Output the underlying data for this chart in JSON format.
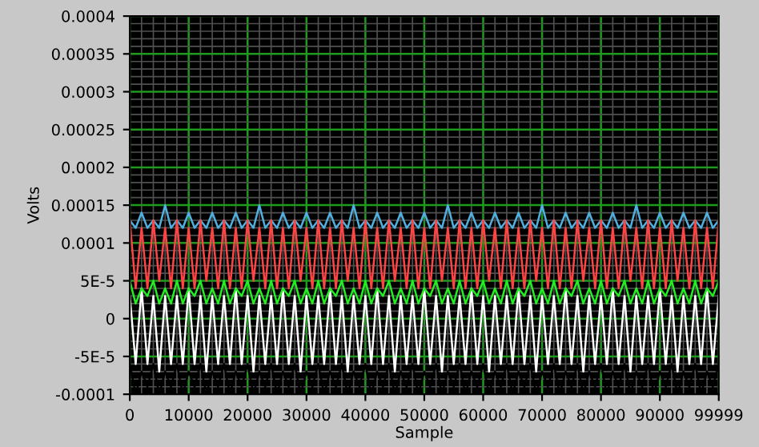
{
  "chart_data": {
    "type": "line",
    "xlabel": "Sample",
    "ylabel": "Volts",
    "xlim": [
      0,
      99999
    ],
    "ylim": [
      -0.0001,
      0.0004
    ],
    "xticks": [
      0,
      10000,
      20000,
      30000,
      40000,
      50000,
      60000,
      70000,
      80000,
      90000,
      99999
    ],
    "yticks": [
      {
        "value": -0.0001,
        "label": "-0.0001"
      },
      {
        "value": -5e-05,
        "label": "-5E-5"
      },
      0,
      {
        "value": 5e-05,
        "label": "5E-5"
      },
      {
        "value": 0.0001,
        "label": "0.0001"
      },
      {
        "value": 0.00015,
        "label": "0.00015"
      },
      {
        "value": 0.0002,
        "label": "0.0002"
      },
      {
        "value": 0.00025,
        "label": "0.00025"
      },
      {
        "value": 0.0003,
        "label": "0.0003"
      },
      {
        "value": 0.00035,
        "label": "0.00035"
      },
      {
        "value": 0.0004,
        "label": "0.0004"
      }
    ],
    "grid": true,
    "marker": "none",
    "line_style": "solid",
    "x": [
      0,
      1000,
      2000,
      3000,
      4000,
      5000,
      6000,
      7000,
      8000,
      9000,
      10000,
      11000,
      12000,
      13000,
      14000,
      15000,
      16000,
      17000,
      18000,
      19000,
      20000,
      21000,
      22000,
      23000,
      24000,
      25000,
      26000,
      27000,
      28000,
      29000,
      30000,
      31000,
      32000,
      33000,
      34000,
      35000,
      36000,
      37000,
      38000,
      39000,
      40000,
      41000,
      42000,
      43000,
      44000,
      45000,
      46000,
      47000,
      48000,
      49000,
      50000,
      51000,
      52000,
      53000,
      54000,
      55000,
      56000,
      57000,
      58000,
      59000,
      60000,
      61000,
      62000,
      63000,
      64000,
      65000,
      66000,
      67000,
      68000,
      69000,
      70000,
      71000,
      72000,
      73000,
      74000,
      75000,
      76000,
      77000,
      78000,
      79000,
      80000,
      81000,
      82000,
      83000,
      84000,
      85000,
      86000,
      87000,
      88000,
      89000,
      90000,
      91000,
      92000,
      93000,
      94000,
      95000,
      96000,
      97000,
      98000,
      99000,
      99999
    ],
    "series": [
      {
        "color": "#ffffff",
        "values": [
          3e-05,
          -6e-05,
          4e-05,
          -6e-05,
          3e-05,
          -7e-05,
          3e-05,
          -6e-05,
          3e-05,
          -6e-05,
          4e-05,
          -6e-05,
          3e-05,
          -7e-05,
          3e-05,
          -6e-05,
          3e-05,
          -6e-05,
          4e-05,
          -6e-05,
          3e-05,
          -7e-05,
          3e-05,
          -6e-05,
          3e-05,
          -6e-05,
          4e-05,
          -6e-05,
          3e-05,
          -7e-05,
          3e-05,
          -6e-05,
          3e-05,
          -6e-05,
          4e-05,
          -6e-05,
          3e-05,
          -7e-05,
          3e-05,
          -6e-05,
          3e-05,
          -6e-05,
          4e-05,
          -6e-05,
          3e-05,
          -7e-05,
          3e-05,
          -6e-05,
          3e-05,
          -6e-05,
          4e-05,
          -6e-05,
          3e-05,
          -7e-05,
          3e-05,
          -6e-05,
          3e-05,
          -6e-05,
          4e-05,
          -6e-05,
          3e-05,
          -7e-05,
          3e-05,
          -6e-05,
          3e-05,
          -6e-05,
          4e-05,
          -6e-05,
          3e-05,
          -7e-05,
          3e-05,
          -6e-05,
          3e-05,
          -6e-05,
          4e-05,
          -6e-05,
          3e-05,
          -7e-05,
          3e-05,
          -6e-05,
          3e-05,
          -6e-05,
          4e-05,
          -6e-05,
          3e-05,
          -7e-05,
          3e-05,
          -6e-05,
          3e-05,
          -6e-05,
          4e-05,
          -6e-05,
          3e-05,
          -7e-05,
          3e-05,
          -6e-05,
          3e-05,
          -6e-05,
          4e-05,
          -6e-05,
          3e-05
        ]
      },
      {
        "color": "#000000",
        "values": [
          -6e-05,
          -0.0001,
          -7e-05,
          -9e-05,
          -6e-05,
          -0.0001,
          -7e-05,
          -9e-05,
          -6e-05,
          -0.0001,
          -7e-05,
          -9e-05,
          -6e-05,
          -0.0001,
          -7e-05,
          -9e-05,
          -6e-05,
          -0.0001,
          -7e-05,
          -9e-05,
          -6e-05,
          -0.0001,
          -7e-05,
          -9e-05,
          -6e-05,
          -0.0001,
          -7e-05,
          -9e-05,
          -6e-05,
          -0.0001,
          -7e-05,
          -9e-05,
          -6e-05,
          -0.0001,
          -7e-05,
          -9e-05,
          -6e-05,
          -0.0001,
          -7e-05,
          -9e-05,
          -6e-05,
          -0.0001,
          -7e-05,
          -9e-05,
          -6e-05,
          -0.0001,
          -7e-05,
          -9e-05,
          -6e-05,
          -0.0001,
          -7e-05,
          -9e-05,
          -6e-05,
          -0.0001,
          -7e-05,
          -9e-05,
          -6e-05,
          -0.0001,
          -7e-05,
          -9e-05,
          -6e-05,
          -0.0001,
          -7e-05,
          -9e-05,
          -6e-05,
          -0.0001,
          -7e-05,
          -9e-05,
          -6e-05,
          -0.0001,
          -7e-05,
          -9e-05,
          -6e-05,
          -0.0001,
          -7e-05,
          -9e-05,
          -6e-05,
          -0.0001,
          -7e-05,
          -9e-05,
          -6e-05,
          -0.0001,
          -7e-05,
          -9e-05,
          -6e-05,
          -0.0001,
          -7e-05,
          -9e-05,
          -6e-05,
          -0.0001,
          -7e-05,
          -9e-05,
          -6e-05,
          -0.0001,
          -7e-05,
          -9e-05,
          -6e-05,
          -0.0001,
          -7e-05,
          -9e-05,
          -6e-05
        ]
      },
      {
        "color": "#22ee22",
        "values": [
          5e-05,
          2e-05,
          4e-05,
          3e-05,
          5e-05,
          2e-05,
          4e-05,
          2e-05,
          5e-05,
          2e-05,
          4e-05,
          3e-05,
          5e-05,
          2e-05,
          4e-05,
          2e-05,
          5e-05,
          2e-05,
          4e-05,
          3e-05,
          5e-05,
          2e-05,
          4e-05,
          2e-05,
          5e-05,
          2e-05,
          4e-05,
          3e-05,
          5e-05,
          2e-05,
          4e-05,
          2e-05,
          5e-05,
          2e-05,
          4e-05,
          3e-05,
          5e-05,
          2e-05,
          4e-05,
          2e-05,
          5e-05,
          2e-05,
          4e-05,
          3e-05,
          5e-05,
          2e-05,
          4e-05,
          2e-05,
          5e-05,
          2e-05,
          4e-05,
          3e-05,
          5e-05,
          2e-05,
          4e-05,
          2e-05,
          5e-05,
          2e-05,
          4e-05,
          3e-05,
          5e-05,
          2e-05,
          4e-05,
          2e-05,
          5e-05,
          2e-05,
          4e-05,
          3e-05,
          5e-05,
          2e-05,
          4e-05,
          2e-05,
          5e-05,
          2e-05,
          4e-05,
          3e-05,
          5e-05,
          2e-05,
          4e-05,
          2e-05,
          5e-05,
          2e-05,
          4e-05,
          3e-05,
          5e-05,
          2e-05,
          4e-05,
          2e-05,
          5e-05,
          2e-05,
          4e-05,
          3e-05,
          5e-05,
          2e-05,
          4e-05,
          2e-05,
          5e-05,
          2e-05,
          4e-05,
          3e-05,
          5e-05
        ]
      },
      {
        "color": "#4fb0e0",
        "values": [
          0.00013,
          0.00012,
          0.00014,
          0.00012,
          0.00013,
          0.00012,
          0.00015,
          0.00012,
          0.00013,
          0.00012,
          0.00014,
          0.00012,
          0.00013,
          0.00012,
          0.00014,
          0.00012,
          0.00013,
          0.00012,
          0.00014,
          0.00012,
          0.00013,
          0.00012,
          0.00015,
          0.00012,
          0.00013,
          0.00012,
          0.00014,
          0.00012,
          0.00013,
          0.00012,
          0.00014,
          0.00012,
          0.00013,
          0.00012,
          0.00014,
          0.00012,
          0.00013,
          0.00012,
          0.00015,
          0.00012,
          0.00013,
          0.00012,
          0.00014,
          0.00012,
          0.00013,
          0.00012,
          0.00014,
          0.00012,
          0.00013,
          0.00012,
          0.00014,
          0.00012,
          0.00013,
          0.00012,
          0.00015,
          0.00012,
          0.00013,
          0.00012,
          0.00014,
          0.00012,
          0.00013,
          0.00012,
          0.00014,
          0.00012,
          0.00013,
          0.00012,
          0.00014,
          0.00012,
          0.00013,
          0.00012,
          0.00015,
          0.00012,
          0.00013,
          0.00012,
          0.00014,
          0.00012,
          0.00013,
          0.00012,
          0.00014,
          0.00012,
          0.00013,
          0.00012,
          0.00014,
          0.00012,
          0.00013,
          0.00012,
          0.00015,
          0.00012,
          0.00013,
          0.00012,
          0.00014,
          0.00012,
          0.00013,
          0.00012,
          0.00014,
          0.00012,
          0.00013,
          0.00012,
          0.00014,
          0.00012,
          0.00013
        ]
      },
      {
        "color": "#ff4444",
        "values": [
          0.00013,
          4e-05,
          0.00012,
          4e-05,
          0.00013,
          5e-05,
          0.00012,
          4e-05,
          0.00013,
          4e-05,
          0.00012,
          4e-05,
          0.00013,
          5e-05,
          0.00012,
          4e-05,
          0.00013,
          4e-05,
          0.00012,
          4e-05,
          0.00013,
          5e-05,
          0.00012,
          4e-05,
          0.00013,
          4e-05,
          0.00012,
          4e-05,
          0.00013,
          5e-05,
          0.00012,
          4e-05,
          0.00013,
          4e-05,
          0.00012,
          4e-05,
          0.00013,
          5e-05,
          0.00012,
          4e-05,
          0.00013,
          4e-05,
          0.00012,
          4e-05,
          0.00013,
          5e-05,
          0.00012,
          4e-05,
          0.00013,
          4e-05,
          0.00012,
          4e-05,
          0.00013,
          5e-05,
          0.00012,
          4e-05,
          0.00013,
          4e-05,
          0.00012,
          4e-05,
          0.00013,
          5e-05,
          0.00012,
          4e-05,
          0.00013,
          4e-05,
          0.00012,
          4e-05,
          0.00013,
          5e-05,
          0.00012,
          4e-05,
          0.00013,
          4e-05,
          0.00012,
          4e-05,
          0.00013,
          5e-05,
          0.00012,
          4e-05,
          0.00013,
          4e-05,
          0.00012,
          4e-05,
          0.00013,
          5e-05,
          0.00012,
          4e-05,
          0.00013,
          4e-05,
          0.00012,
          4e-05,
          0.00013,
          5e-05,
          0.00012,
          4e-05,
          0.00013,
          4e-05,
          0.00012,
          4e-05,
          0.00013
        ]
      }
    ]
  }
}
